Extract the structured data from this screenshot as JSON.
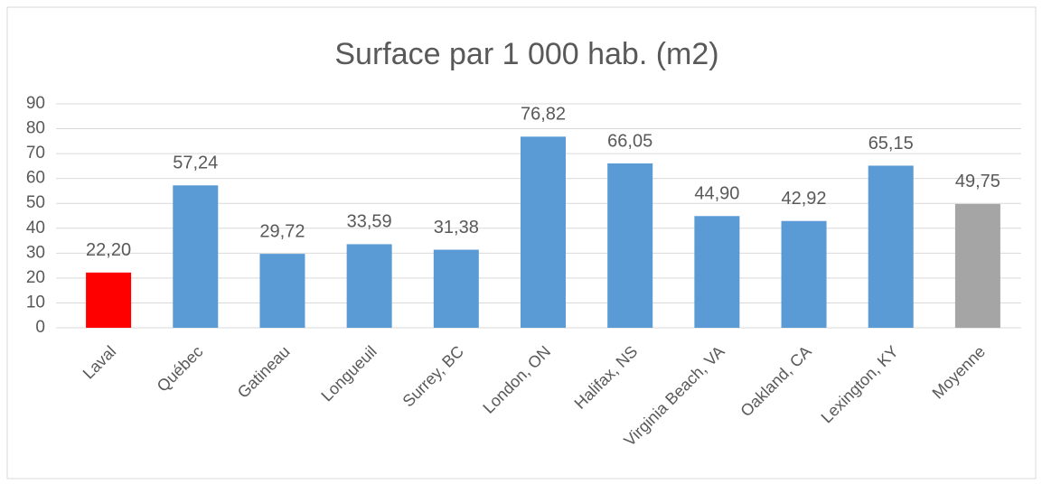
{
  "chart_data": {
    "type": "bar",
    "title": "Surface par 1 000 hab. (m2)",
    "categories": [
      "Laval",
      "Québec",
      "Gatineau",
      "Longueuil",
      "Surrey, BC",
      "London, ON",
      "Halifax, NS",
      "Virginia Beach, VA",
      "Oakland, CA",
      "Lexington, KY",
      "Moyenne"
    ],
    "values": [
      22.2,
      57.24,
      29.72,
      33.59,
      31.38,
      76.82,
      66.05,
      44.9,
      42.92,
      65.15,
      49.75
    ],
    "value_labels": [
      "22,20",
      "57,24",
      "29,72",
      "33,59",
      "31,38",
      "76,82",
      "66,05",
      "44,90",
      "42,92",
      "65,15",
      "49,75"
    ],
    "colors": [
      "#ff0000",
      "#5b9bd5",
      "#5b9bd5",
      "#5b9bd5",
      "#5b9bd5",
      "#5b9bd5",
      "#5b9bd5",
      "#5b9bd5",
      "#5b9bd5",
      "#5b9bd5",
      "#a5a5a5"
    ],
    "ylim": [
      0,
      90
    ],
    "yticks": [
      0,
      10,
      20,
      30,
      40,
      50,
      60,
      70,
      80,
      90
    ],
    "grid": true
  }
}
